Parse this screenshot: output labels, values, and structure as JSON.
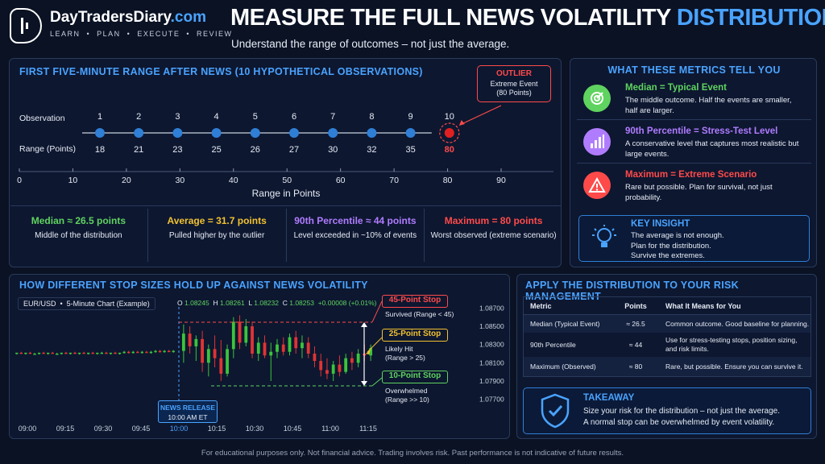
{
  "brand": {
    "name": "DayTradersDiary",
    "tld": ".com",
    "tagline": "LEARN  •  PLAN  •  EXECUTE  •  REVIEW"
  },
  "header": {
    "title_main": "MEASURE THE FULL NEWS VOLATILITY",
    "title_accent": "DISTRIBUTION",
    "subtitle": "Understand the range of outcomes – not just the average."
  },
  "range_panel": {
    "title": "FIRST FIVE-MINUTE RANGE AFTER NEWS (10 HYPOTHETICAL OBSERVATIONS)",
    "row1_label": "Observation",
    "row2_label": "Range (Points)",
    "axis_title": "Range in Points",
    "outlier": {
      "title": "OUTLIER",
      "line1": "Extreme Event",
      "line2": "(80 Points)"
    },
    "stats": [
      {
        "title": "Median ≈ 26.5 points",
        "desc": "Middle of the distribution",
        "color": "#5fd35f"
      },
      {
        "title": "Average = 31.7 points",
        "desc": "Pulled higher by the outlier",
        "color": "#f2c230"
      },
      {
        "title": "90th Percentile ≈ 44 points",
        "desc": "Level exceeded in ~10% of events",
        "color": "#b07cff"
      },
      {
        "title": "Maximum = 80 points",
        "desc": "Worst observed (extreme scenario)",
        "color": "#ff4a4a"
      }
    ]
  },
  "metrics": {
    "title": "WHAT THESE METRICS TELL YOU",
    "items": [
      {
        "head1": "Median",
        "head2": " = Typical Event",
        "body": "The middle outcome. Half the events are smaller, half are larger.",
        "color": "#5fd35f",
        "icon": "target-icon"
      },
      {
        "head1": "90th Percentile",
        "head2": " = Stress-Test Level",
        "body": "A conservative level that captures most realistic but large events.",
        "color": "#b07cff",
        "icon": "bar-chart-icon"
      },
      {
        "head1": "Maximum",
        "head2": " = Extreme Scenario",
        "body": "Rare but possible. Plan for survival, not just probability.",
        "color": "#ff4a4a",
        "icon": "warning-icon"
      }
    ],
    "insight": {
      "title": "KEY INSIGHT",
      "line1": "The average is not enough.",
      "line2": "Plan for the distribution.",
      "line3": "Survive the extremes."
    }
  },
  "stops_panel": {
    "title": "HOW DIFFERENT STOP SIZES HOLD UP AGAINST NEWS VOLATILITY",
    "symbol": "EUR/USD  •  5-Minute Chart (Example)",
    "ohlc": {
      "o_label": "O",
      "o": "1.08245",
      "h_label": "H",
      "h": "1.08261",
      "l_label": "L",
      "l": "1.08232",
      "c_label": "C",
      "c": "1.08253",
      "chg": "+0.00008 (+0.01%)"
    },
    "news_label1": "NEWS RELEASE",
    "news_label2": "10:00 AM ET",
    "stops": [
      {
        "title": "45-Point Stop",
        "note1": "Survived (Range < 45)",
        "note2": "",
        "color": "#ff4a4a"
      },
      {
        "title": "25-Point Stop",
        "note1": "Likely Hit",
        "note2": "(Range > 25)",
        "color": "#f2c230"
      },
      {
        "title": "10-Point Stop",
        "note1": "Overwhelmed",
        "note2": "(Range >> 10)",
        "color": "#5fd35f"
      }
    ]
  },
  "risk": {
    "title": "APPLY THE DISTRIBUTION TO YOUR RISK MANAGEMENT",
    "headers": [
      "Metric",
      "Points",
      "What It Means for You"
    ],
    "rows": [
      [
        "Median (Typical Event)",
        "≈ 26.5",
        "Common outcome. Good baseline for planning."
      ],
      [
        "90th Percentile",
        "≈ 44",
        "Use for stress-testing stops, position sizing, and risk limits."
      ],
      [
        "Maximum (Observed)",
        "≈ 80",
        "Rare, but possible. Ensure you can survive it."
      ]
    ],
    "takeaway_title": "TAKEAWAY",
    "takeaway_line1": "Size your risk for the distribution – not just the average.",
    "takeaway_line2": "A normal stop can be overwhelmed by event volatility."
  },
  "footer": "For educational purposes only. Not financial advice. Trading involves risk. Past performance is not indicative of future results.",
  "chart_data": [
    {
      "type": "scatter",
      "title": "FIRST FIVE-MINUTE RANGE AFTER NEWS (10 HYPOTHETICAL OBSERVATIONS)",
      "xlabel": "Range in Points",
      "x_ticks": [
        0,
        10,
        20,
        30,
        40,
        50,
        60,
        70,
        80,
        90
      ],
      "xlim": [
        0,
        90
      ],
      "observations": [
        1,
        2,
        3,
        4,
        5,
        6,
        7,
        8,
        9,
        10
      ],
      "values": [
        18,
        21,
        23,
        25,
        26,
        27,
        30,
        32,
        35,
        80
      ],
      "highlight_index": 9
    },
    {
      "type": "candlestick",
      "title": "HOW DIFFERENT STOP SIZES HOLD UP AGAINST NEWS VOLATILITY",
      "x_ticks": [
        "09:00",
        "09:15",
        "09:30",
        "09:45",
        "10:00",
        "10:15",
        "10:30",
        "10:45",
        "11:00",
        "11:15"
      ],
      "y_ticks": [
        "1.08700",
        "1.08500",
        "1.08300",
        "1.08100",
        "1.07900",
        "1.07700"
      ],
      "ylim": [
        1.0765,
        1.0875
      ],
      "candles_pre": [
        [
          1.082,
          1.0821,
          1.0819,
          1.0821
        ],
        [
          1.0821,
          1.0822,
          1.082,
          1.082
        ],
        [
          1.082,
          1.0821,
          1.0819,
          1.0821
        ],
        [
          1.0821,
          1.0822,
          1.082,
          1.082
        ],
        [
          1.082,
          1.0821,
          1.0819,
          1.082
        ],
        [
          1.082,
          1.0821,
          1.0819,
          1.0821
        ],
        [
          1.0821,
          1.0822,
          1.082,
          1.082
        ],
        [
          1.082,
          1.0821,
          1.0819,
          1.0821
        ],
        [
          1.0821,
          1.0822,
          1.082,
          1.082
        ],
        [
          1.082,
          1.0821,
          1.0819,
          1.082
        ],
        [
          1.082,
          1.0821,
          1.0819,
          1.0821
        ],
        [
          1.0821,
          1.0822,
          1.082,
          1.082
        ],
        [
          1.082,
          1.0821,
          1.0819,
          1.0821
        ],
        [
          1.0821,
          1.0822,
          1.082,
          1.082
        ],
        [
          1.082,
          1.0821,
          1.0819,
          1.0821
        ],
        [
          1.0821,
          1.0822,
          1.082,
          1.082
        ],
        [
          1.082,
          1.0821,
          1.0819,
          1.0821
        ],
        [
          1.0821,
          1.0822,
          1.082,
          1.082
        ],
        [
          1.082,
          1.0821,
          1.0819,
          1.0821
        ],
        [
          1.0821,
          1.0822,
          1.082,
          1.0821
        ],
        [
          1.0821,
          1.0822,
          1.082,
          1.082
        ],
        [
          1.082,
          1.0821,
          1.0819,
          1.0821
        ],
        [
          1.0821,
          1.0822,
          1.082,
          1.082
        ],
        [
          1.082,
          1.0821,
          1.0819,
          1.0821
        ],
        [
          1.0821,
          1.0823,
          1.082,
          1.0822
        ],
        [
          1.0822,
          1.0823,
          1.082,
          1.0821
        ],
        [
          1.0821,
          1.0823,
          1.082,
          1.0822
        ],
        [
          1.0822,
          1.0823,
          1.0821,
          1.0821
        ],
        [
          1.0821,
          1.0823,
          1.082,
          1.0822
        ],
        [
          1.0822,
          1.0823,
          1.0821,
          1.0821
        ],
        [
          1.0821,
          1.0823,
          1.082,
          1.0822
        ],
        [
          1.0822,
          1.0824,
          1.0821,
          1.0823
        ],
        [
          1.0823,
          1.0824,
          1.0821,
          1.0822
        ],
        [
          1.0822,
          1.0824,
          1.0821,
          1.0823
        ],
        [
          1.0823,
          1.0824,
          1.0822,
          1.0822
        ],
        [
          1.0822,
          1.0824,
          1.0821,
          1.0823
        ]
      ],
      "candles_post": [
        [
          1.0823,
          1.0852,
          1.081,
          1.0842
        ],
        [
          1.0842,
          1.085,
          1.082,
          1.0828
        ],
        [
          1.0828,
          1.084,
          1.0812,
          1.0836
        ],
        [
          1.0836,
          1.0845,
          1.08,
          1.081
        ],
        [
          1.081,
          1.083,
          1.0795,
          1.0825
        ],
        [
          1.0825,
          1.084,
          1.0805,
          1.0815
        ],
        [
          1.0815,
          1.0835,
          1.079,
          1.0798
        ],
        [
          1.0798,
          1.083,
          1.0795,
          1.0825
        ],
        [
          1.0825,
          1.086,
          1.0815,
          1.0855
        ],
        [
          1.0855,
          1.0862,
          1.0825,
          1.0832
        ],
        [
          1.0832,
          1.0858,
          1.0828,
          1.085
        ],
        [
          1.085,
          1.0855,
          1.0815,
          1.082
        ],
        [
          1.082,
          1.0838,
          1.0812,
          1.0832
        ],
        [
          1.0832,
          1.084,
          1.0815,
          1.0818
        ],
        [
          1.0818,
          1.0832,
          1.079,
          1.0822
        ],
        [
          1.0822,
          1.0836,
          1.0815,
          1.083
        ],
        [
          1.083,
          1.0838,
          1.0818,
          1.0822
        ],
        [
          1.0822,
          1.0842,
          1.0818,
          1.0838
        ],
        [
          1.0838,
          1.0845,
          1.082,
          1.0826
        ],
        [
          1.0826,
          1.084,
          1.0815,
          1.0832
        ],
        [
          1.0832,
          1.0838,
          1.0815,
          1.082
        ],
        [
          1.082,
          1.0828,
          1.0805,
          1.0812
        ],
        [
          1.0812,
          1.082,
          1.0795,
          1.0802
        ],
        [
          1.0802,
          1.0815,
          1.0792,
          1.0798
        ],
        [
          1.0798,
          1.0812,
          1.079,
          1.0808
        ],
        [
          1.0808,
          1.0818,
          1.0795,
          1.08
        ],
        [
          1.08,
          1.082,
          1.0798,
          1.0815
        ],
        [
          1.0815,
          1.0822,
          1.0802,
          1.081
        ],
        [
          1.081,
          1.0825,
          1.0805,
          1.082
        ],
        [
          1.082,
          1.083,
          1.0812,
          1.0818
        ],
        [
          1.0818,
          1.083,
          1.0812,
          1.0826
        ]
      ],
      "stop_levels": {
        "upper_45": 1.08545,
        "lower_10": 1.07847
      }
    }
  ]
}
